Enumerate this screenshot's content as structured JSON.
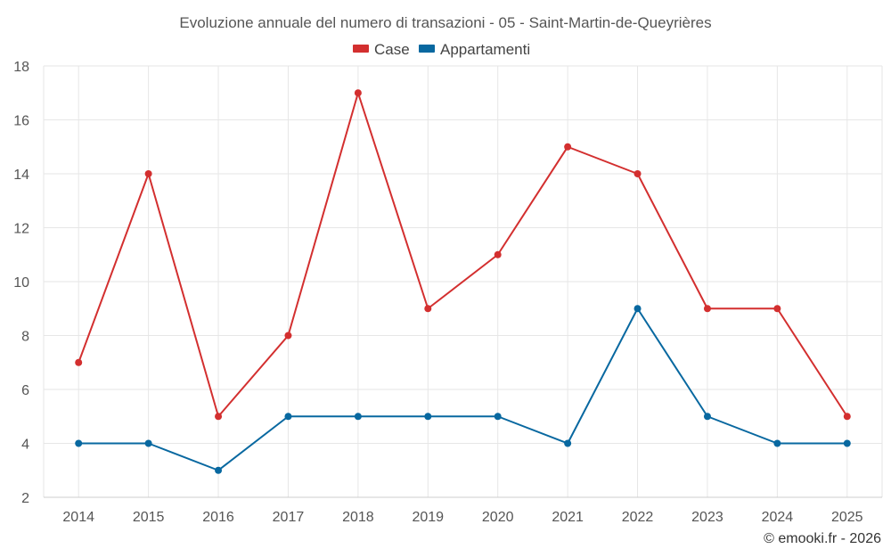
{
  "chart_data": {
    "type": "line",
    "title": "Evoluzione annuale del numero di transazioni - 05 - Saint-Martin-de-Queyrières",
    "categories": [
      "2014",
      "2015",
      "2016",
      "2017",
      "2018",
      "2019",
      "2020",
      "2021",
      "2022",
      "2023",
      "2024",
      "2025"
    ],
    "series": [
      {
        "name": "Case",
        "color": "#d32f2f",
        "values": [
          7,
          14,
          5,
          8,
          17,
          9,
          11,
          15,
          14,
          9,
          9,
          5
        ]
      },
      {
        "name": "Appartamenti",
        "color": "#0868a0",
        "values": [
          4,
          4,
          3,
          5,
          5,
          5,
          5,
          4,
          9,
          5,
          4,
          4
        ]
      }
    ],
    "ylim": [
      2,
      18
    ],
    "yticks": [
      "2",
      "4",
      "6",
      "8",
      "10",
      "12",
      "14",
      "16",
      "18"
    ],
    "xlabel": "",
    "ylabel": "",
    "grid": true,
    "legend_position": "top-center"
  },
  "credit": "© emooki.fr - 2026"
}
